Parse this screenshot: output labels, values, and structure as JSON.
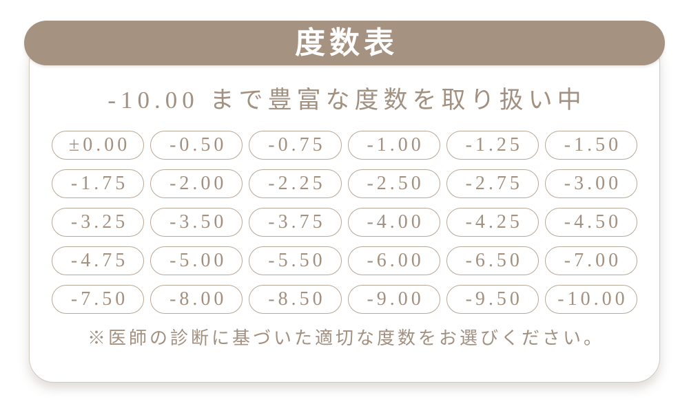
{
  "header": {
    "title": "度数表"
  },
  "subtitle": "-10.00 まで豊富な度数を取り扱い中",
  "powers": {
    "rows": [
      [
        "±0.00",
        "-0.50",
        "-0.75",
        "-1.00",
        "-1.25",
        "-1.50"
      ],
      [
        "-1.75",
        "-2.00",
        "-2.25",
        "-2.50",
        "-2.75",
        "-3.00"
      ],
      [
        "-3.25",
        "-3.50",
        "-3.75",
        "-4.00",
        "-4.25",
        "-4.50"
      ],
      [
        "-4.75",
        "-5.00",
        "-5.50",
        "-6.00",
        "-6.50",
        "-7.00"
      ],
      [
        "-7.50",
        "-8.00",
        "-8.50",
        "-9.00",
        "-9.50",
        "-10.00"
      ]
    ]
  },
  "note": "※医師の診断に基づいた適切な度数をお選びください。",
  "colors": {
    "banner_bg": "#a69280",
    "banner_text": "#ffffff",
    "body_text": "#a29080",
    "pill_border": "#b7a898",
    "card_border": "#d3c9be",
    "card_bg": "#ffffff",
    "page_bg": "#ffffff"
  }
}
